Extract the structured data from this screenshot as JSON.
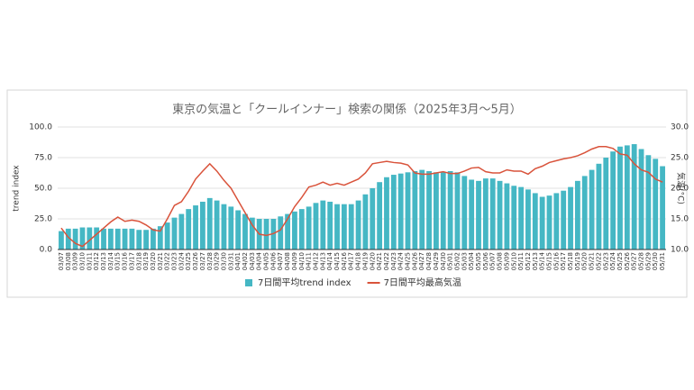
{
  "chart_data": {
    "type": "combo",
    "title": "東京の気温と「クールインナー」検索の関係（2025年3月〜5月）",
    "y_label": "trend index",
    "y2_label": "気温(°C)",
    "categories": [
      "03/07",
      "03/08",
      "03/09",
      "03/10",
      "03/11",
      "03/12",
      "03/13",
      "03/14",
      "03/15",
      "03/16",
      "03/17",
      "03/18",
      "03/19",
      "03/20",
      "03/21",
      "03/22",
      "03/23",
      "03/24",
      "03/25",
      "03/26",
      "03/27",
      "03/28",
      "03/29",
      "03/30",
      "03/31",
      "04/01",
      "04/02",
      "04/03",
      "04/04",
      "04/05",
      "04/06",
      "04/07",
      "04/08",
      "04/09",
      "04/10",
      "04/11",
      "04/12",
      "04/13",
      "04/14",
      "04/15",
      "04/16",
      "04/17",
      "04/18",
      "04/19",
      "04/20",
      "04/21",
      "04/22",
      "04/23",
      "04/24",
      "04/25",
      "04/26",
      "04/27",
      "04/28",
      "04/29",
      "04/30",
      "05/01",
      "05/02",
      "05/03",
      "05/04",
      "05/05",
      "05/06",
      "05/07",
      "05/08",
      "05/09",
      "05/10",
      "05/11",
      "05/12",
      "05/13",
      "05/14",
      "05/15",
      "05/16",
      "05/17",
      "05/18",
      "05/19",
      "05/20",
      "05/21",
      "05/22",
      "05/23",
      "05/24",
      "05/25",
      "05/26",
      "05/27",
      "05/28",
      "05/29",
      "05/30",
      "05/31"
    ],
    "series": [
      {
        "name": "7日間平均trend index",
        "type": "bar",
        "color": "#45b7c4",
        "values": [
          15,
          17,
          17,
          18,
          18,
          18,
          17,
          17,
          17,
          17,
          17,
          16,
          16,
          17,
          19,
          22,
          26,
          29,
          33,
          36,
          39,
          42,
          40,
          37,
          35,
          32,
          29,
          26,
          25,
          25,
          25,
          27,
          29,
          31,
          33,
          35,
          38,
          40,
          39,
          37,
          37,
          37,
          40,
          45,
          50,
          55,
          59,
          61,
          62,
          63,
          64,
          65,
          64,
          63,
          63,
          64,
          63,
          60,
          57,
          56,
          58,
          58,
          56,
          54,
          52,
          51,
          49,
          46,
          43,
          44,
          46,
          48,
          51,
          56,
          60,
          65,
          70,
          75,
          80,
          84,
          85,
          86,
          82,
          77,
          74,
          68
        ]
      },
      {
        "name": "7日間平均最高気温",
        "type": "line",
        "axis": "y2",
        "color": "#d9533b",
        "values": [
          13.5,
          12,
          11,
          10.5,
          11.5,
          12.5,
          13.5,
          14.5,
          15.3,
          14.6,
          14.8,
          14.6,
          14,
          13.2,
          13,
          15,
          17.2,
          17.8,
          19.5,
          21.5,
          22.8,
          24,
          22.8,
          21.3,
          20,
          18,
          16,
          14,
          12.5,
          12.3,
          12.6,
          13.2,
          15,
          17,
          18.5,
          20.2,
          20.5,
          21,
          20.5,
          20.8,
          20.5,
          21,
          21.5,
          22.5,
          24,
          24.2,
          24.4,
          24.2,
          24.1,
          23.8,
          22.5,
          22.3,
          22.3,
          22.5,
          22.7,
          22.4,
          22.4,
          22.8,
          23.3,
          23.4,
          22.7,
          22.5,
          22.5,
          23,
          22.8,
          22.8,
          22.3,
          23.2,
          23.6,
          24.2,
          24.5,
          24.8,
          25,
          25.3,
          25.8,
          26.4,
          26.8,
          26.8,
          26.5,
          25.6,
          25.4,
          24,
          23,
          22.6,
          21.5,
          21
        ]
      }
    ],
    "ylim": [
      0,
      100
    ],
    "yticks": [
      {
        "value": 0,
        "label": "0.0"
      },
      {
        "value": 25,
        "label": "25.0"
      },
      {
        "value": 50,
        "label": "50.0"
      },
      {
        "value": 75,
        "label": "75.0"
      },
      {
        "value": 100,
        "label": "100.0"
      }
    ],
    "y2lim": [
      10,
      30
    ],
    "y2ticks": [
      {
        "value": 10,
        "label": "10.0"
      },
      {
        "value": 15,
        "label": "15.0"
      },
      {
        "value": 20,
        "label": "20.0"
      },
      {
        "value": 25,
        "label": "25.0"
      },
      {
        "value": 30,
        "label": "30.0"
      }
    ],
    "grid": true,
    "legend": "bottom"
  }
}
